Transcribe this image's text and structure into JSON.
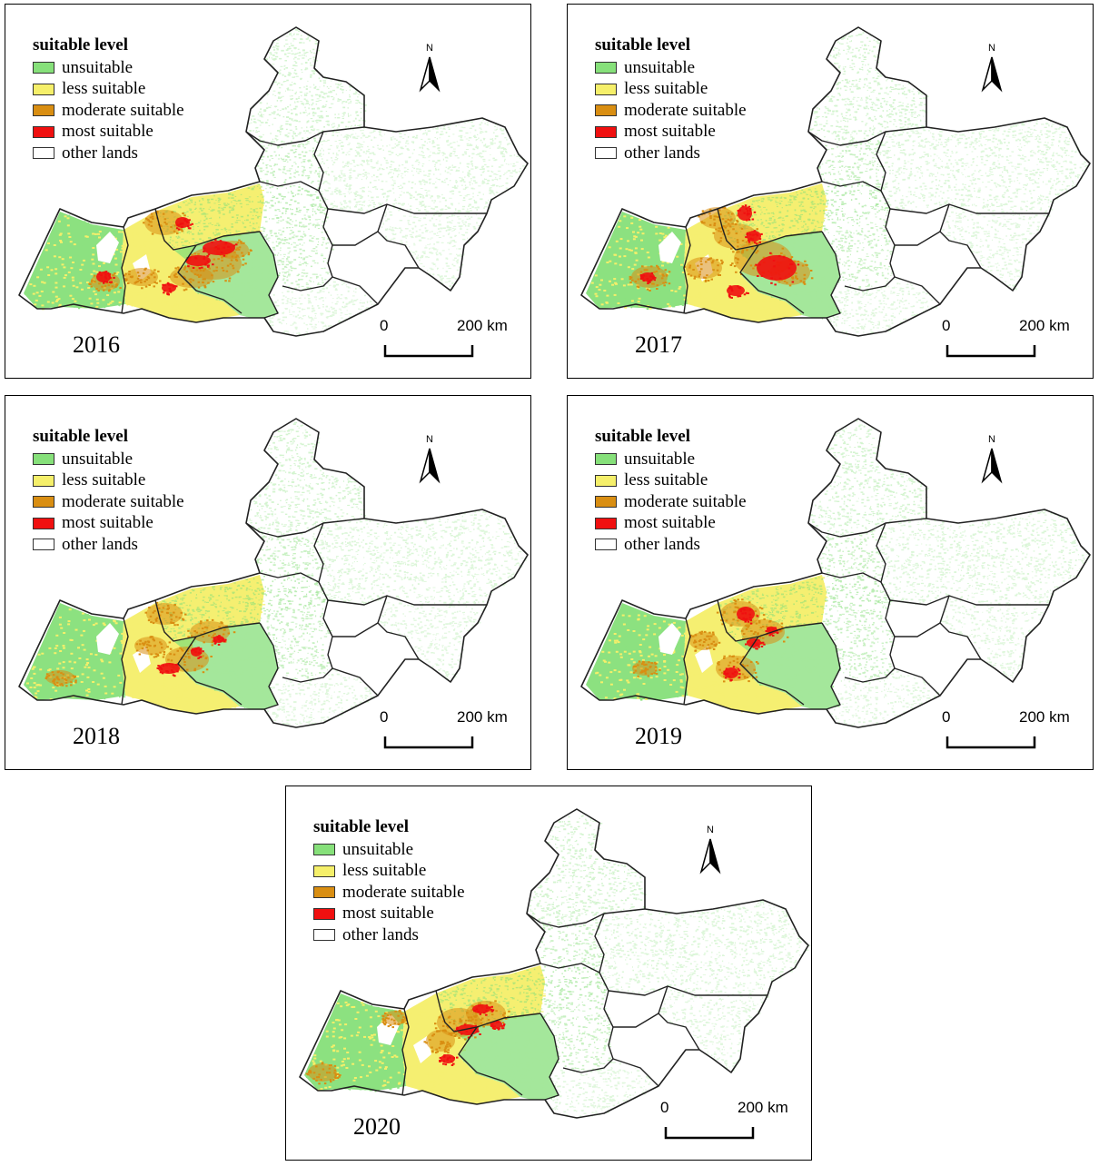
{
  "legend": {
    "title": "suitable level",
    "items": [
      {
        "label": "unsuitable",
        "color": "#86e07a"
      },
      {
        "label": "less suitable",
        "color": "#f5ef6a"
      },
      {
        "label": "moderate suitable",
        "color": "#d98e12"
      },
      {
        "label": "most suitable",
        "color": "#f01010"
      },
      {
        "label": "other lands",
        "color": "#ffffff"
      }
    ]
  },
  "north_arrow": {
    "label": "N"
  },
  "scale_bar": {
    "start_label": "0",
    "end_label": "200 km"
  },
  "maps": [
    {
      "year": "2016"
    },
    {
      "year": "2017"
    },
    {
      "year": "2018"
    },
    {
      "year": "2019"
    },
    {
      "year": "2020"
    }
  ]
}
